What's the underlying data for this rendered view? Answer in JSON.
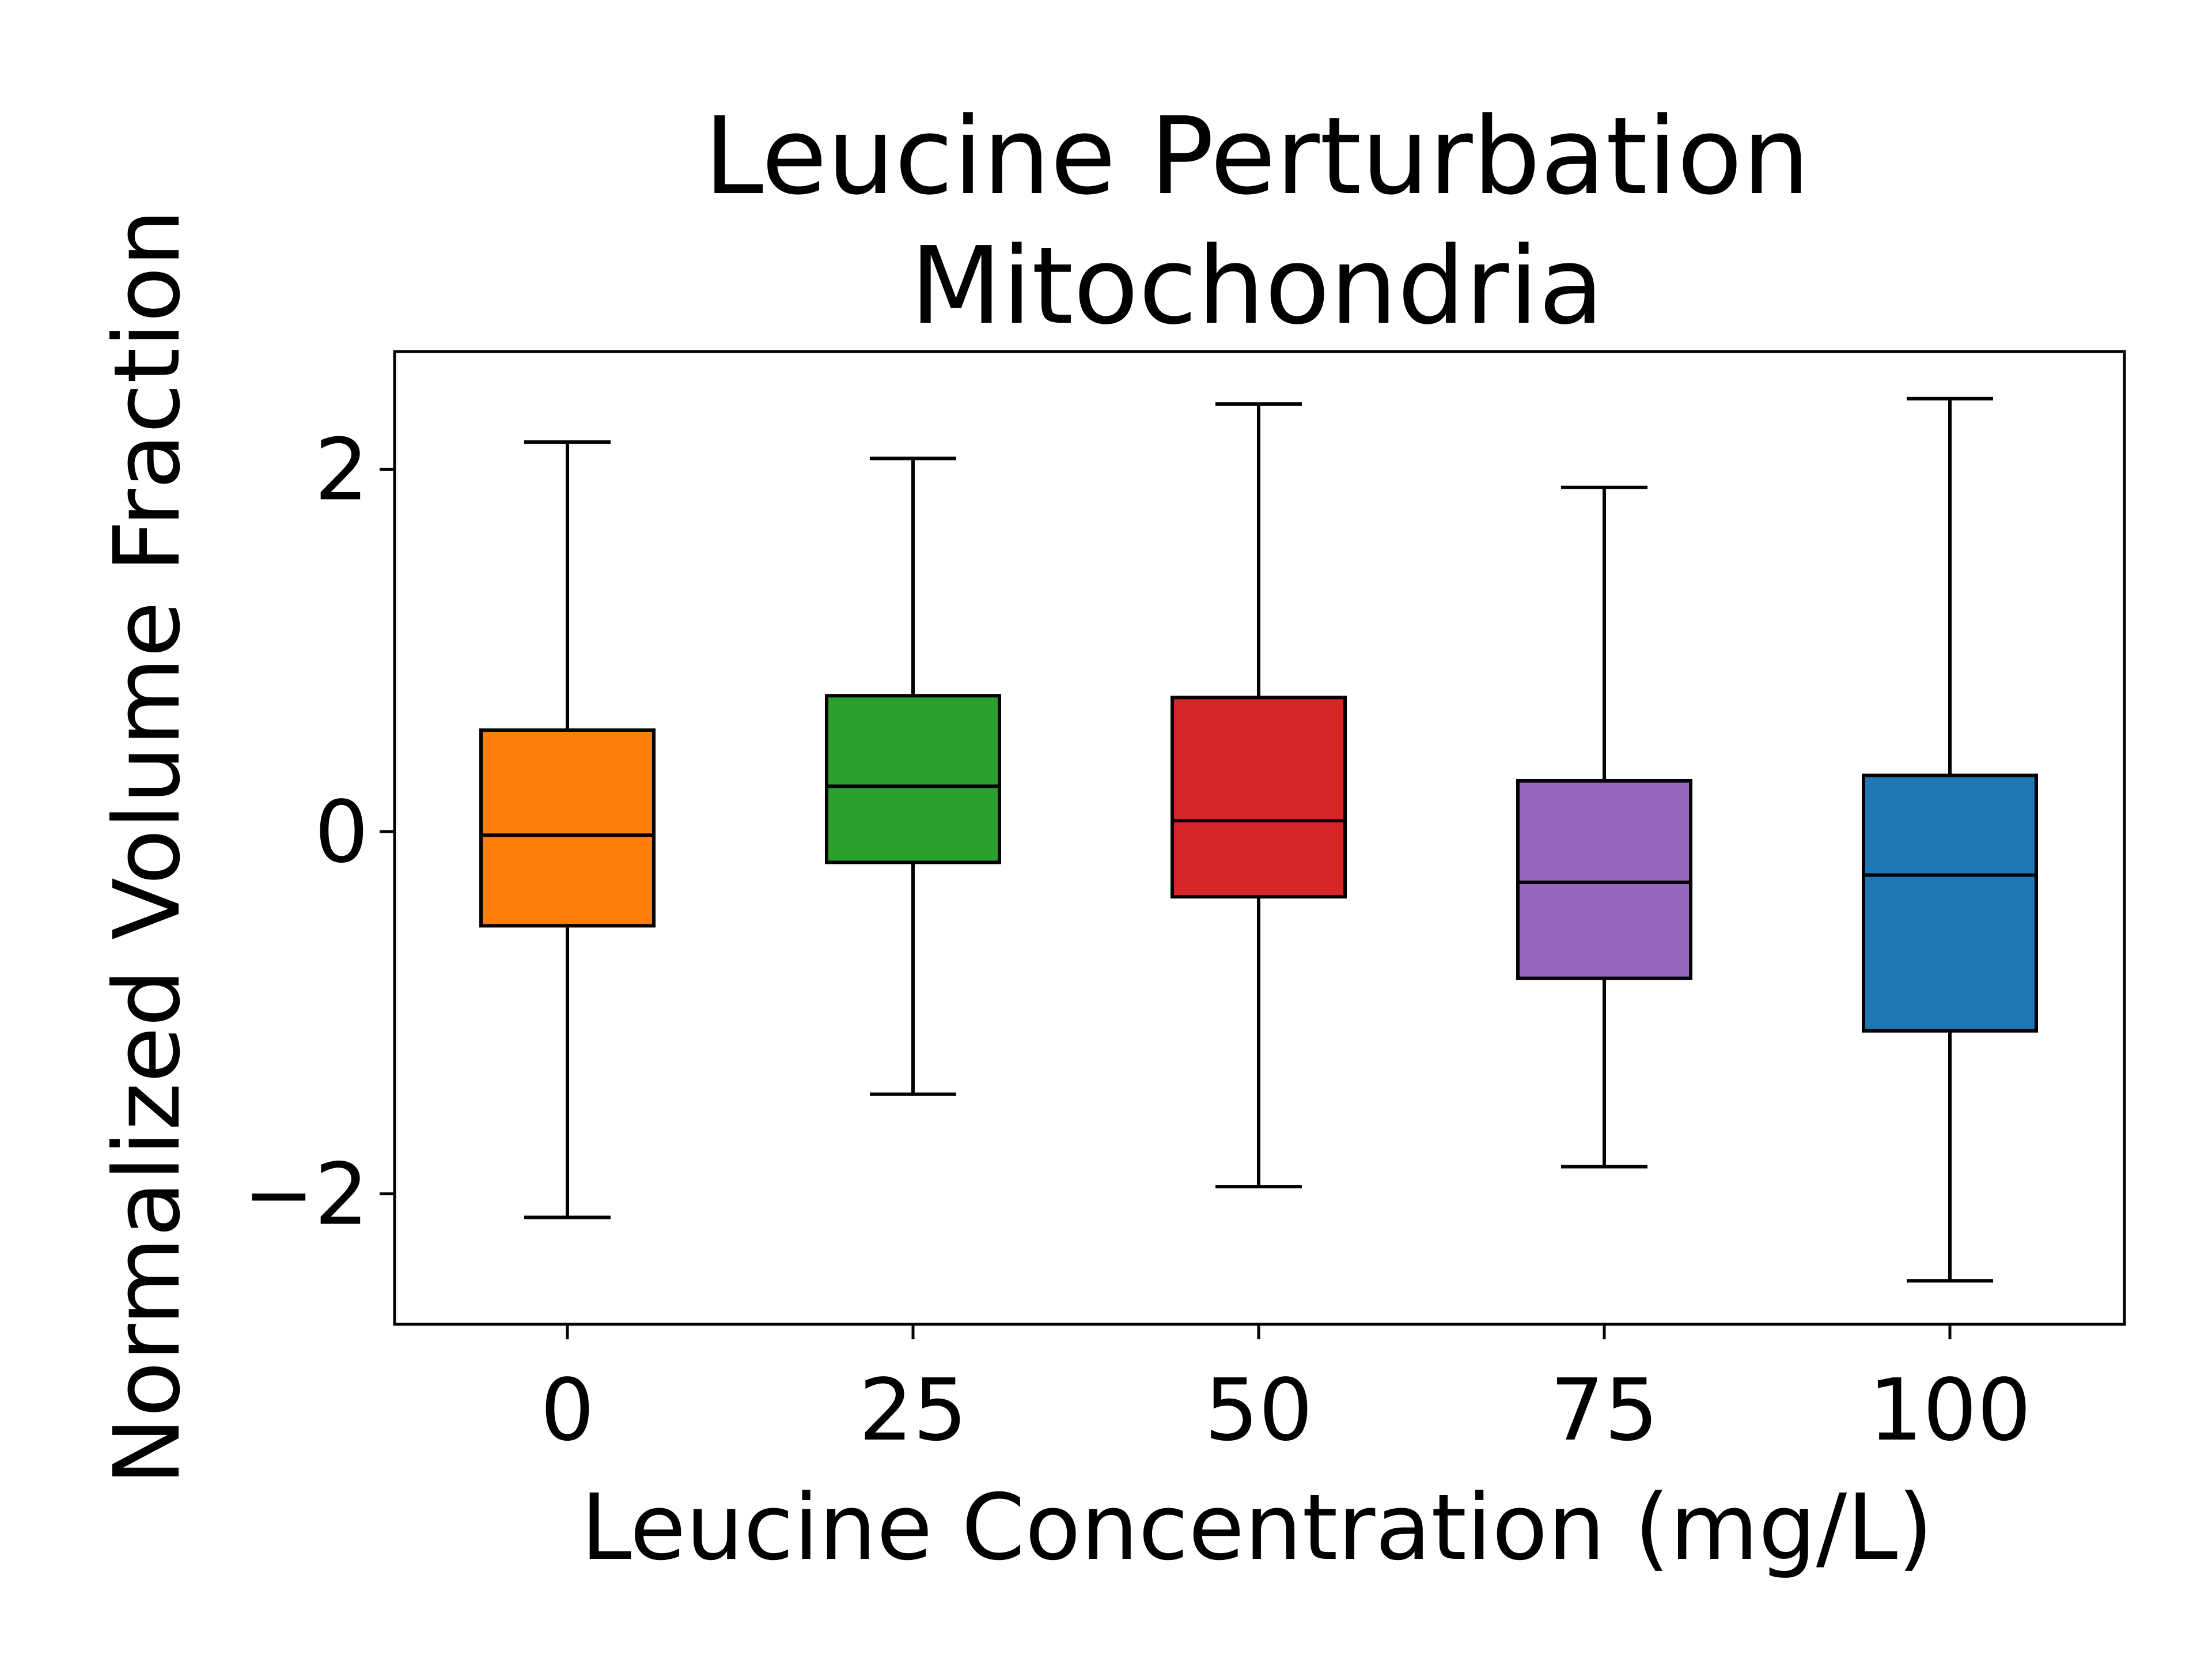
{
  "chart_data": {
    "type": "box",
    "title": "Leucine Perturbation",
    "subtitle": "Mitochondria",
    "xlabel": "Leucine Concentration (mg/L)",
    "ylabel": "Normalized Volume Fraction",
    "ylim": [
      -2.72,
      2.65
    ],
    "yticks": [
      {
        "value": -2,
        "label": "−2"
      },
      {
        "value": 0,
        "label": "0"
      },
      {
        "value": 2,
        "label": "2"
      }
    ],
    "grid": false,
    "legend": "none",
    "boxes": [
      {
        "category": "0",
        "color": "#ff7f0e",
        "whisker_low": -2.13,
        "q1": -0.52,
        "median": -0.02,
        "q3": 0.56,
        "whisker_high": 2.15
      },
      {
        "category": "25",
        "color": "#2ca02c",
        "whisker_low": -1.45,
        "q1": -0.17,
        "median": 0.25,
        "q3": 0.75,
        "whisker_high": 2.06
      },
      {
        "category": "50",
        "color": "#d62728",
        "whisker_low": -1.96,
        "q1": -0.36,
        "median": 0.06,
        "q3": 0.74,
        "whisker_high": 2.36
      },
      {
        "category": "75",
        "color": "#9467bd",
        "whisker_low": -1.85,
        "q1": -0.81,
        "median": -0.28,
        "q3": 0.28,
        "whisker_high": 1.9
      },
      {
        "category": "100",
        "color": "#1f77b4",
        "whisker_low": -2.48,
        "q1": -1.1,
        "median": -0.24,
        "q3": 0.31,
        "whisker_high": 2.39
      }
    ]
  }
}
